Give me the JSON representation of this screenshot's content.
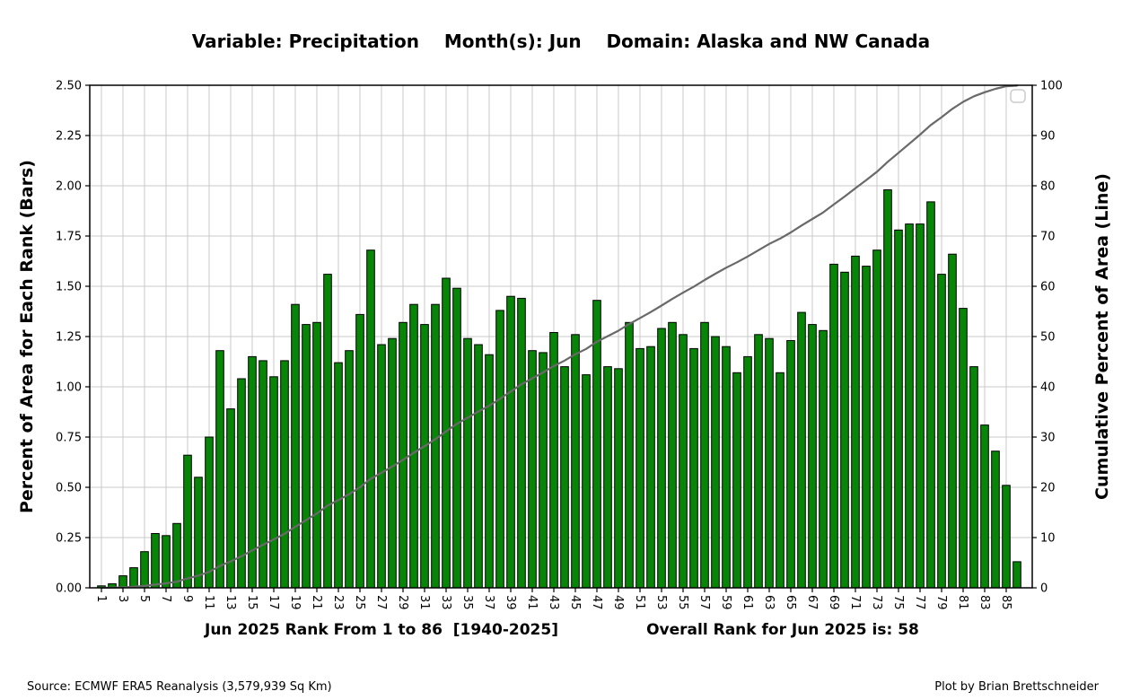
{
  "title": "Variable: Precipitation    Month(s): Jun    Domain: Alaska and NW Canada",
  "footer": {
    "source": "Source: ECMWF ERA5 Reanalysis (3,579,939 Sq Km)",
    "credit": "Plot by Brian Brettschneider"
  },
  "chart_data": {
    "type": "bar",
    "overlay": "line-cumulative-right-axis",
    "title": "Variable: Precipitation    Month(s): Jun    Domain: Alaska and NW Canada",
    "xlabel_left": "Jun 2025 Rank From 1 to 86  [1940-2025]",
    "xlabel_right": "Overall Rank for Jun 2025 is: 58",
    "ylabel_left": "Percent of Area for Each Rank (Bars)",
    "ylabel_right": "Cumulative Percent of Area (Line)",
    "ranks": 86,
    "ylim_left": [
      0,
      2.5
    ],
    "ylim_right": [
      0,
      100
    ],
    "left_tick_step": 0.25,
    "right_tick_step": 10,
    "x_tick_labels": [
      1,
      3,
      5,
      7,
      9,
      11,
      13,
      15,
      17,
      19,
      21,
      23,
      25,
      27,
      29,
      31,
      33,
      35,
      37,
      39,
      41,
      43,
      45,
      47,
      49,
      51,
      53,
      55,
      57,
      59,
      61,
      63,
      65,
      67,
      69,
      71,
      73,
      75,
      77,
      79,
      81,
      83,
      85
    ],
    "grid": true,
    "legend": "small empty box, top-right inside plot",
    "bar_values_percent": [
      0.01,
      0.02,
      0.06,
      0.1,
      0.18,
      0.27,
      0.26,
      0.32,
      0.66,
      0.55,
      0.75,
      1.18,
      0.89,
      1.04,
      1.15,
      1.13,
      1.05,
      1.13,
      1.41,
      1.31,
      1.32,
      1.56,
      1.12,
      1.18,
      1.36,
      1.68,
      1.21,
      1.24,
      1.32,
      1.41,
      1.31,
      1.41,
      1.54,
      1.49,
      1.24,
      1.21,
      1.16,
      1.38,
      1.45,
      1.44,
      1.18,
      1.17,
      1.27,
      1.1,
      1.26,
      1.06,
      1.43,
      1.1,
      1.09,
      1.32,
      1.19,
      1.2,
      1.29,
      1.32,
      1.26,
      1.19,
      1.32,
      1.25,
      1.2,
      1.07,
      1.15,
      1.26,
      1.24,
      1.07,
      1.23,
      1.37,
      1.31,
      1.28,
      1.61,
      1.57,
      1.65,
      1.6,
      1.68,
      1.98,
      1.78,
      1.81,
      1.81,
      1.92,
      1.56,
      1.66,
      1.39,
      1.1,
      0.81,
      0.68,
      0.51,
      0.13
    ],
    "line_definition": "cumulative running sum of bar_values_percent, plotted on right axis 0-100",
    "colors": {
      "bar_fill": "#078507",
      "bar_edge": "#000000",
      "cumulative_line": "#696969",
      "grid": "#c8c8c8",
      "spine": "#000000",
      "background": "#ffffff",
      "legend_border": "#cccccc"
    }
  }
}
